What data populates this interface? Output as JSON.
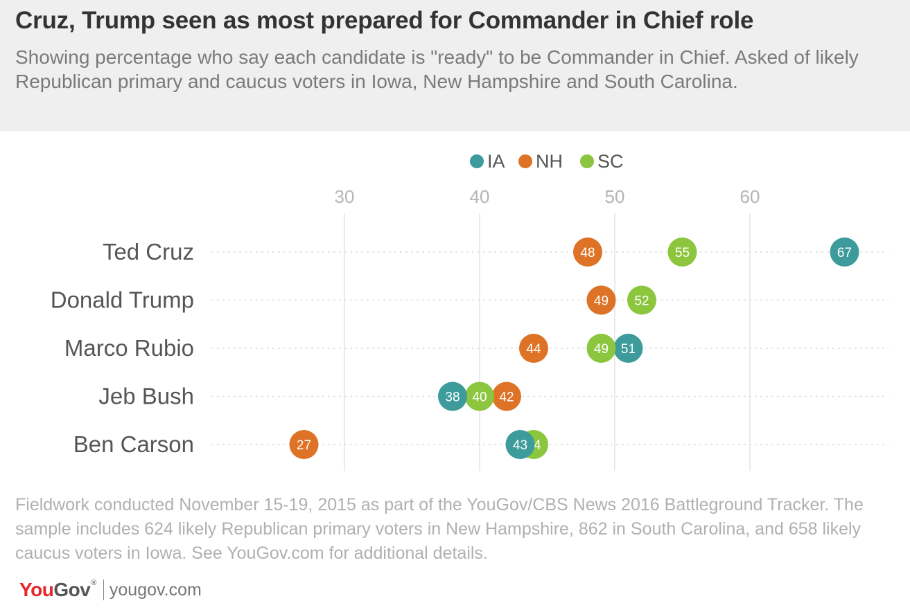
{
  "title": "Cruz, Trump seen as most prepared for Commander in Chief role",
  "subtitle": "Showing percentage who say each candidate is \"ready\" to be Commander in Chief. Asked of likely Republican primary and caucus voters in Iowa, New Hampshire and South Carolina.",
  "footnote": "Fieldwork conducted November 15-19, 2015 as part of the YouGov/CBS News 2016 Battleground Tracker. The sample includes 624 likely Republican primary voters in New Hampshire, 862 in South Carolina, and 658 likely caucus voters in Iowa. See YouGov.com for additional details.",
  "brand": {
    "logo_you": "You",
    "logo_gov": "Gov",
    "logo_mark": "®",
    "url": "yougov.com"
  },
  "chart_data": {
    "type": "scatter",
    "title": "Cruz, Trump seen as most prepared for Commander in Chief role",
    "categories": [
      "Ted Cruz",
      "Donald Trump",
      "Marco Rubio",
      "Jeb Bush",
      "Ben Carson"
    ],
    "series": [
      {
        "name": "IA",
        "color": "#3d9b9c",
        "values": [
          67,
          49,
          51,
          38,
          43
        ]
      },
      {
        "name": "NH",
        "color": "#de7327",
        "values": [
          48,
          49,
          44,
          42,
          27
        ]
      },
      {
        "name": "SC",
        "color": "#8cc63e",
        "values": [
          55,
          52,
          49,
          40,
          44
        ]
      }
    ],
    "draw_order": [
      {
        "series": "IA",
        "category": "Ted Cruz"
      },
      {
        "series": "NH",
        "category": "Ted Cruz"
      },
      {
        "series": "SC",
        "category": "Ted Cruz"
      },
      {
        "series": "IA",
        "category": "Donald Trump"
      },
      {
        "series": "NH",
        "category": "Donald Trump"
      },
      {
        "series": "SC",
        "category": "Donald Trump"
      },
      {
        "series": "NH",
        "category": "Marco Rubio"
      },
      {
        "series": "IA",
        "category": "Marco Rubio"
      },
      {
        "series": "SC",
        "category": "Marco Rubio"
      },
      {
        "series": "NH",
        "category": "Jeb Bush"
      },
      {
        "series": "SC",
        "category": "Jeb Bush"
      },
      {
        "series": "IA",
        "category": "Jeb Bush"
      },
      {
        "series": "NH",
        "category": "Ben Carson"
      },
      {
        "series": "SC",
        "category": "Ben Carson"
      },
      {
        "series": "IA",
        "category": "Ben Carson"
      }
    ],
    "xticks": [
      30,
      40,
      50,
      60
    ],
    "xlim": [
      20,
      70
    ],
    "grid": true,
    "legend_position": "top-center"
  }
}
